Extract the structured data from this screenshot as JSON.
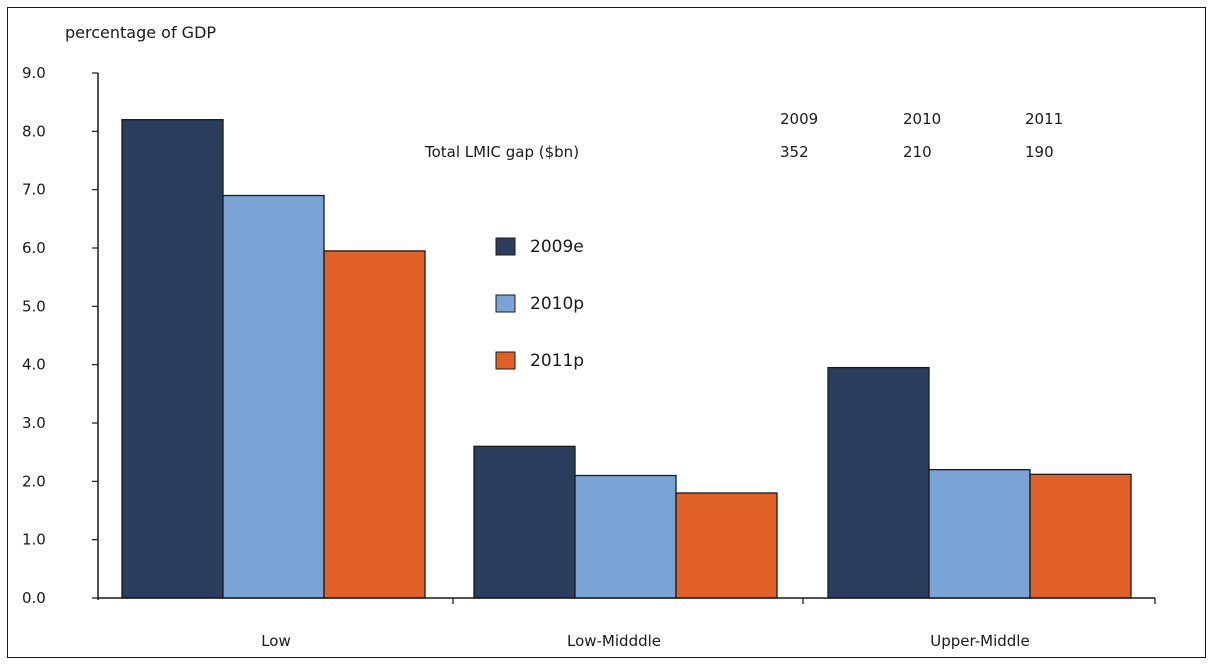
{
  "chart_data": {
    "type": "bar",
    "ylabel": "percentage of GDP",
    "ylim": [
      0,
      9
    ],
    "yticks": [
      "0.0",
      "1.0",
      "2.0",
      "3.0",
      "4.0",
      "5.0",
      "6.0",
      "7.0",
      "8.0",
      "9.0"
    ],
    "categories": [
      "Low",
      "Low-Midddle",
      "Upper-Middle"
    ],
    "series": [
      {
        "name": "2009e",
        "color": "#2b3d5c",
        "values": [
          8.2,
          2.6,
          3.95
        ]
      },
      {
        "name": "2010p",
        "color": "#7aa3d6",
        "values": [
          6.9,
          2.1,
          2.2
        ]
      },
      {
        "name": "2011p",
        "color": "#e06027",
        "values": [
          5.95,
          1.8,
          2.12
        ]
      }
    ],
    "legend_position": "center",
    "grid": false,
    "annotation_table": {
      "row_label": "Total LMIC gap ($bn)",
      "years": [
        "2009",
        "2010",
        "2011"
      ],
      "values": [
        "352",
        "210",
        "190"
      ]
    }
  }
}
